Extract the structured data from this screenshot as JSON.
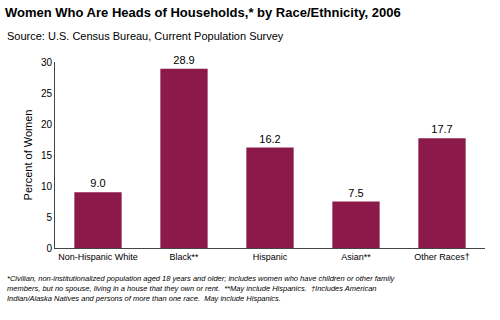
{
  "chart_data": {
    "type": "bar",
    "title": "Women Who Are Heads of Households,* by Race/Ethnicity, 2006",
    "subtitle": "Source: U.S. Census Bureau, Current Population Survey",
    "annotations": [
      "*Civilian, non-institutionalized population aged 18 years and older; includes women who have children or other family\nmembers, but no spouse, living in a house that they own or rent.  **May include Hispanics.  †Includes American\nIndian/Alaska Natives and persons of more than one race.  May include Hispanics."
    ],
    "categories": [
      "Non-Hispanic White",
      "Black**",
      "Hispanic",
      "Asian**",
      "Other Races†"
    ],
    "values": [
      9.0,
      28.9,
      16.2,
      7.5,
      17.7
    ],
    "value_labels": [
      "9.0",
      "28.9",
      "16.2",
      "7.5",
      "17.7"
    ],
    "data_labels": true,
    "color": "#8B1A4A",
    "ylabel": "Percent of Women",
    "ylim": [
      0,
      30
    ],
    "yticks": [
      0,
      5,
      10,
      15,
      20,
      25,
      30
    ],
    "grid": false
  }
}
